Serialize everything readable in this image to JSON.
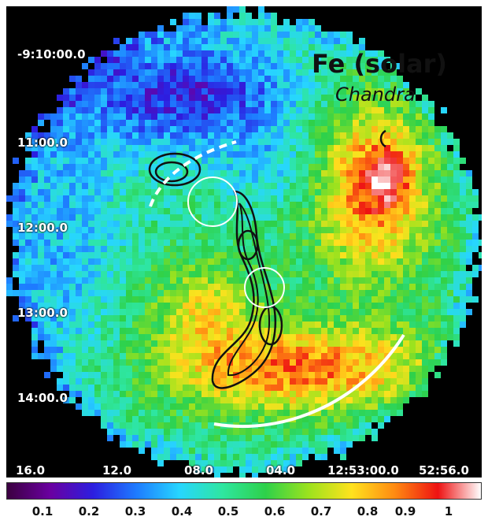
{
  "title": "Fe (solar)",
  "subtitle": "Chandra",
  "dec_labels": [
    "-9:10:00.0",
    "11:00.0",
    "12:00.0",
    "13:00.0",
    "14:00.0"
  ],
  "ra_labels": [
    "16.0",
    "12.0",
    "08.0",
    "04.0",
    "12:53:00.0",
    "52:56.0"
  ],
  "colorbar": {
    "ticks": [
      "0.1",
      "0.2",
      "0.3",
      "0.4",
      "0.5",
      "0.6",
      "0.7",
      "0.8",
      "0.9",
      "1"
    ],
    "gradient_colors": [
      "#3b0040",
      "#6a00a0",
      "#2c1ee0",
      "#1e7bff",
      "#27d6ff",
      "#2ee6a0",
      "#2ed14a",
      "#9ce21e",
      "#ffe21e",
      "#ff8a12",
      "#ee1212",
      "#ffffff"
    ]
  },
  "colors": {
    "background": "#000000",
    "contour": "#111111",
    "marker": "#ffffff"
  }
}
